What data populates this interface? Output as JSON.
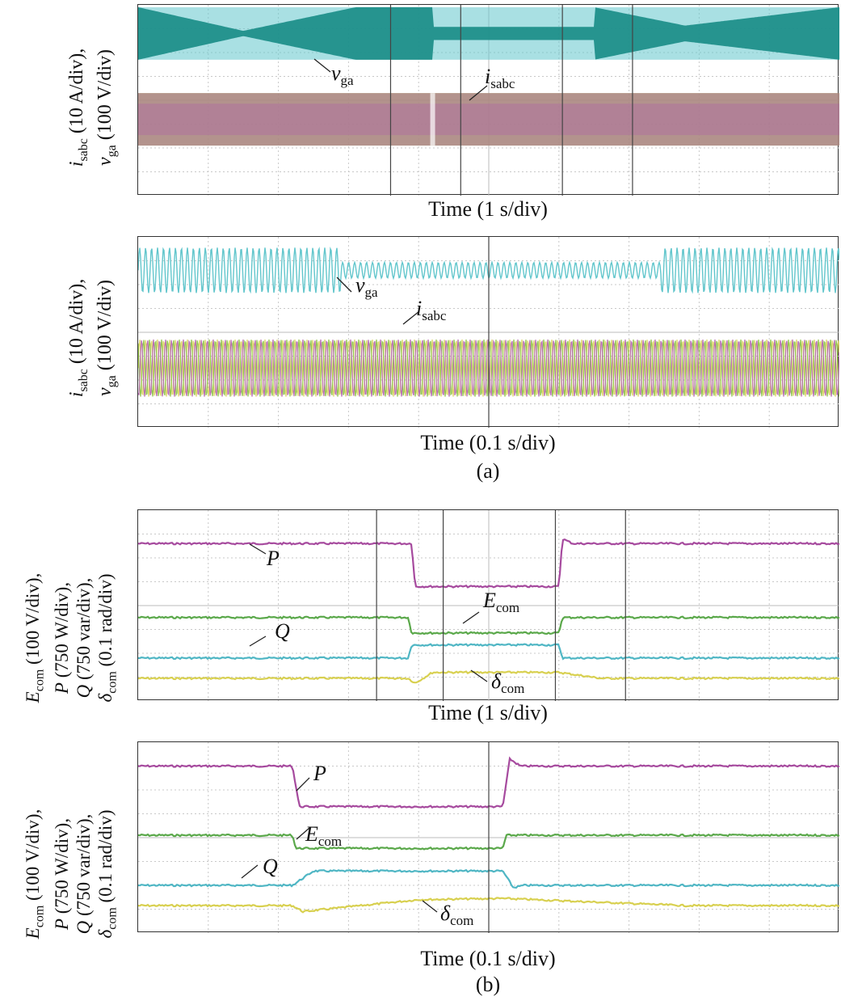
{
  "colors": {
    "vga": "#1f8f8a",
    "vga_light": "#62c6cc",
    "current_a": "#b060a8",
    "current_b": "#8ac040",
    "current_c": "#d9d05a",
    "P": "#a64a9e",
    "E": "#5aa84a",
    "Q": "#4fb6c4",
    "delta": "#d8d050",
    "grid": "#c8c8c8",
    "cursor": "#444444"
  },
  "figure_a": {
    "caption": "(a)",
    "top": {
      "xlabel": "Time (1 s/div)",
      "ylabel_line1_main": "i",
      "ylabel_line1_sub": "sabc",
      "ylabel_line1_rest": " (10 A/div),",
      "ylabel_line2_main": "v",
      "ylabel_line2_sub": "ga",
      "ylabel_line2_rest": " (100 V/div)",
      "ann_v": {
        "main": "v",
        "sub": "ga"
      },
      "ann_i": {
        "main": "i",
        "sub": "sabc"
      }
    },
    "bottom": {
      "xlabel": "Time (0.1 s/div)",
      "ylabel_line1_main": "i",
      "ylabel_line1_sub": "sabc",
      "ylabel_line1_rest": " (10 A/div),",
      "ylabel_line2_main": "v",
      "ylabel_line2_sub": "ga",
      "ylabel_line2_rest": " (100 V/div)",
      "ann_v": {
        "main": "v",
        "sub": "ga"
      },
      "ann_i": {
        "main": "i",
        "sub": "sabc"
      }
    }
  },
  "figure_b": {
    "caption": "(b)",
    "top": {
      "xlabel": "Time (1 s/div)",
      "ann_P": {
        "main": "P",
        "sub": ""
      },
      "ann_E": {
        "main": "E",
        "sub": "com"
      },
      "ann_Q": {
        "main": "Q",
        "sub": ""
      },
      "ann_d": {
        "main": "δ",
        "sub": "com"
      }
    },
    "bottom": {
      "xlabel": "Time (0.1 s/div)",
      "ann_P": {
        "main": "P",
        "sub": ""
      },
      "ann_E": {
        "main": "E",
        "sub": "com"
      },
      "ann_Q": {
        "main": "Q",
        "sub": ""
      },
      "ann_d": {
        "main": "δ",
        "sub": "com"
      }
    },
    "ylabel": {
      "l1_main": "E",
      "l1_sub": "com",
      "l1_rest": " (100 V/div),",
      "l2_main": "P",
      "l2_rest": " (750 W/div),",
      "l3_main": "Q",
      "l3_rest": " (750 var/div),",
      "l4_main": "δ",
      "l4_sub": "com",
      "l4_rest": " (0.1 rad/div)"
    }
  },
  "chart_data": [
    {
      "type": "line",
      "panel": "a-top",
      "xlabel": "Time (1 s/div)",
      "x_divisions": 10,
      "y_divisions": 8,
      "series": [
        {
          "name": "vga",
          "envelope": [
            [
              0,
              1.0
            ],
            [
              1.5,
              0.1
            ],
            [
              3.1,
              1.0
            ],
            [
              4.2,
              1.0
            ],
            [
              4.2,
              0.25
            ],
            [
              6.5,
              0.25
            ],
            [
              6.5,
              1.0
            ],
            [
              7.8,
              0.3
            ],
            [
              10,
              1.0
            ]
          ]
        },
        {
          "name": "isabc",
          "envelope": [
            [
              0,
              1.0
            ],
            [
              10,
              1.0
            ]
          ]
        }
      ],
      "cursors_x": [
        3.6,
        4.6,
        6.05,
        7.05
      ]
    },
    {
      "type": "line",
      "panel": "a-bottom",
      "xlabel": "Time (0.1 s/div)",
      "x_divisions": 10,
      "y_divisions": 8,
      "series": [
        {
          "name": "vga",
          "amplitude": [
            [
              0,
              1.0
            ],
            [
              2.9,
              1.0
            ],
            [
              2.9,
              0.35
            ],
            [
              7.45,
              0.35
            ],
            [
              7.45,
              1.0
            ],
            [
              10,
              1.0
            ]
          ]
        },
        {
          "name": "isabc",
          "amplitude": [
            [
              0,
              1.0
            ],
            [
              10,
              1.0
            ]
          ]
        }
      ],
      "cursors_x": [
        5.0
      ]
    },
    {
      "type": "line",
      "panel": "b-top",
      "xlabel": "Time (1 s/div)",
      "x_divisions": 10,
      "y_divisions": 8,
      "series": [
        {
          "name": "P",
          "x": [
            0,
            3.9,
            3.95,
            6.0,
            6.05,
            6.2,
            10
          ],
          "y": [
            6.6,
            6.6,
            4.8,
            4.8,
            6.8,
            6.6,
            6.6
          ]
        },
        {
          "name": "Ecom",
          "x": [
            0,
            3.85,
            3.9,
            6.0,
            6.05,
            10
          ],
          "y": [
            3.5,
            3.5,
            2.85,
            2.85,
            3.5,
            3.5
          ]
        },
        {
          "name": "Q",
          "x": [
            0,
            3.85,
            3.9,
            6.0,
            6.05,
            10
          ],
          "y": [
            1.8,
            1.8,
            2.35,
            2.35,
            1.8,
            1.8
          ]
        },
        {
          "name": "δcom",
          "x": [
            0,
            3.85,
            3.95,
            4.2,
            6.0,
            6.6,
            10
          ],
          "y": [
            0.95,
            0.95,
            0.75,
            1.2,
            1.2,
            0.95,
            0.95
          ]
        }
      ],
      "cursors_x": [
        3.4,
        4.35,
        5.95,
        6.95
      ]
    },
    {
      "type": "line",
      "panel": "b-bottom",
      "xlabel": "Time (0.1 s/div)",
      "x_divisions": 10,
      "y_divisions": 8,
      "series": [
        {
          "name": "P",
          "x": [
            0,
            2.2,
            2.3,
            5.2,
            5.3,
            5.45,
            10
          ],
          "y": [
            7.0,
            7.0,
            5.3,
            5.3,
            7.3,
            7.0,
            7.0
          ]
        },
        {
          "name": "Ecom",
          "x": [
            0,
            2.2,
            2.25,
            5.2,
            5.25,
            10
          ],
          "y": [
            4.1,
            4.1,
            3.55,
            3.55,
            4.1,
            4.1
          ]
        },
        {
          "name": "Q",
          "x": [
            0,
            2.2,
            2.5,
            5.2,
            5.35,
            5.5,
            10
          ],
          "y": [
            2.0,
            2.0,
            2.6,
            2.6,
            1.9,
            2.0,
            2.0
          ]
        },
        {
          "name": "δcom",
          "x": [
            0,
            2.2,
            2.35,
            4.0,
            5.2,
            7.8,
            10
          ],
          "y": [
            1.15,
            1.15,
            0.9,
            1.4,
            1.45,
            1.15,
            1.15
          ]
        }
      ],
      "cursors_x": [
        5.0
      ]
    }
  ]
}
